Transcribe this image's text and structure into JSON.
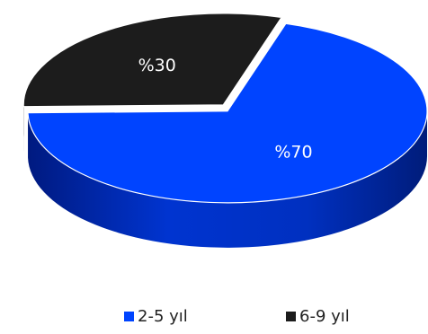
{
  "chart_data": {
    "type": "pie",
    "categories": [
      "2-5 yıl",
      "6-9 yıl"
    ],
    "values": [
      70,
      30
    ],
    "data_labels": [
      "%70",
      "%30"
    ],
    "colors": [
      "#0044ff",
      "#1c1c1c"
    ],
    "side_colors": [
      "#0030c8",
      "#0a0a0a"
    ],
    "label_colors": [
      "#ffffff",
      "#ffffff"
    ],
    "legend_position": "bottom",
    "style": "3d"
  },
  "legend": {
    "items": [
      {
        "label": "2-5 yıl",
        "color": "#0044ff"
      },
      {
        "label": "6-9 yıl",
        "color": "#1c1c1c"
      }
    ]
  }
}
